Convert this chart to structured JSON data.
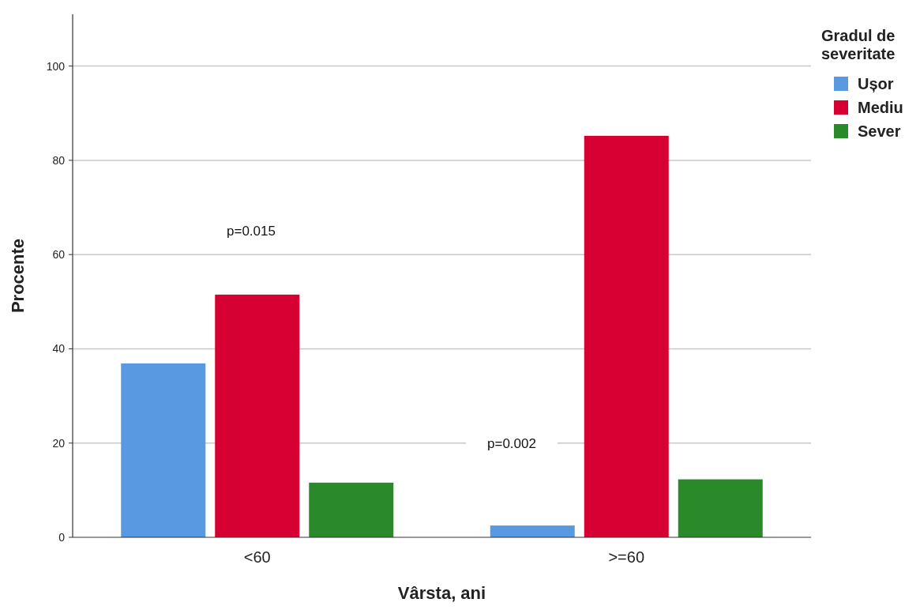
{
  "chart_data": {
    "type": "bar",
    "xlabel": "Vârsta, ani",
    "ylabel": "Procente",
    "legend_title": "Gradul de severitate",
    "categories": [
      "<60",
      ">=60"
    ],
    "series": [
      {
        "name": "Ușor",
        "color": "#5899e2",
        "values": [
          36.9,
          2.5
        ]
      },
      {
        "name": "Mediu",
        "color": "#d70032",
        "values": [
          51.5,
          85.2
        ]
      },
      {
        "name": "Sever",
        "color": "#2a8a2a",
        "values": [
          11.6,
          12.3
        ]
      }
    ],
    "ylim": [
      0,
      111
    ],
    "yticks": [
      0,
      20,
      40,
      60,
      80,
      100
    ],
    "grid": "y",
    "legend": "top right",
    "annotations": [
      "p=0.015",
      "p=0.002"
    ]
  }
}
